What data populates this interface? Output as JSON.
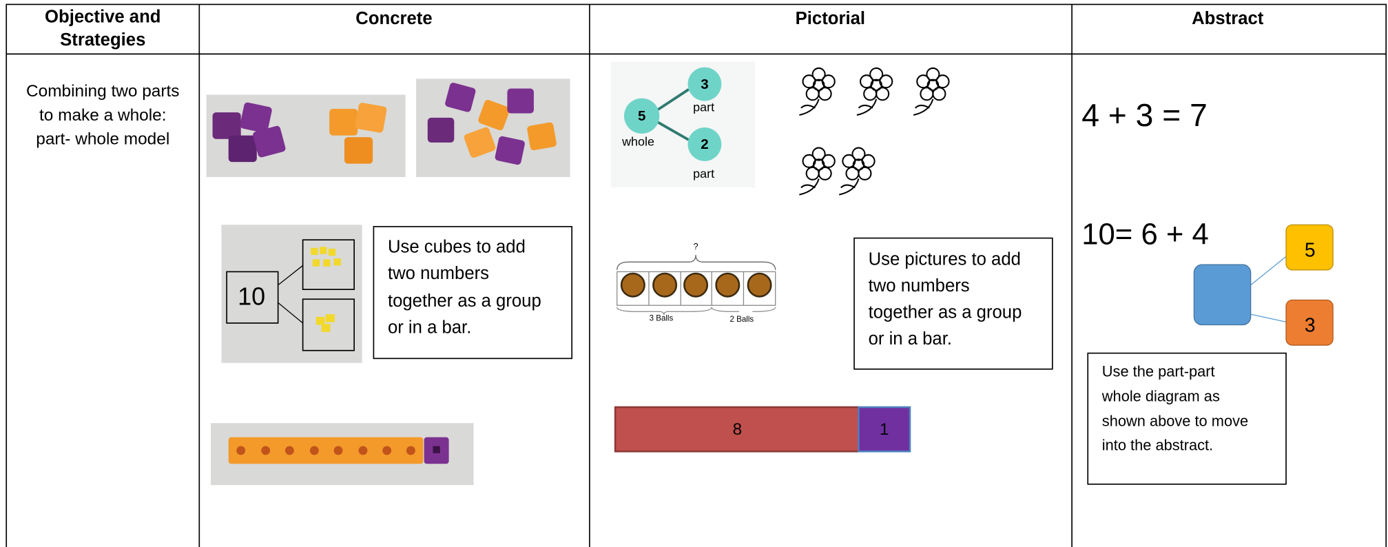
{
  "table": {
    "headers": [
      [
        "Objective and",
        "Strategies"
      ],
      "Concrete",
      "Pictorial",
      "Abstract"
    ],
    "objective": [
      "Combining two parts",
      "to make a whole:",
      "part- whole model"
    ],
    "concrete": {
      "photo_number": "10",
      "note": [
        "Use cubes to add",
        "two numbers",
        "together as a group",
        "or in a bar."
      ]
    },
    "pictorial": {
      "part_whole": {
        "whole_value": "5",
        "whole_label": "whole",
        "part1_value": "3",
        "part1_label": "part",
        "part2_value": "2",
        "part2_label": "part"
      },
      "bar_model": {
        "question": "?",
        "left_label": "3 Balls",
        "right_label": "2 Balls"
      },
      "note": [
        "Use pictures to add",
        "two numbers",
        "together as a group",
        "or in a bar."
      ],
      "bar": {
        "big": "8",
        "small": "1"
      }
    },
    "abstract": {
      "equation1": "4 + 3 = 7",
      "equation2": "10= 6 + 4",
      "diagram": {
        "part1": "5",
        "part2": "3"
      },
      "note": [
        "Use the part-part",
        "whole diagram as",
        "shown above to move",
        "into the abstract."
      ]
    }
  }
}
